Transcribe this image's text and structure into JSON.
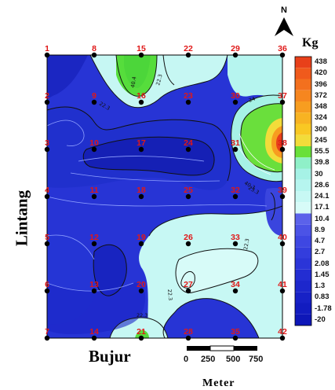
{
  "header_text": "",
  "labels": {
    "y_axis": "Lintang",
    "x_axis": "Bujur",
    "unit": "Kg",
    "scale_unit": "Meter",
    "north": "N"
  },
  "scale_bar": {
    "ticks": [
      "0",
      "250",
      "500",
      "750"
    ]
  },
  "legend": {
    "values": [
      "438",
      "420",
      "396",
      "372",
      "348",
      "324",
      "300",
      "245",
      "55.5",
      "39.8",
      "30",
      "28.6",
      "24.1",
      "17.1",
      "10.4",
      "8.9",
      "4.7",
      "2.7",
      "2.08",
      "1.45",
      "1.3",
      "0.83",
      "-1.78",
      "-20"
    ],
    "colors": [
      "#e8401a",
      "#f05a1c",
      "#f3701e",
      "#f6861f",
      "#f79d20",
      "#f8b322",
      "#f9c823",
      "#f2dc3a",
      "#69e03a",
      "#8ff0c8",
      "#a6f2e6",
      "#b6f5ef",
      "#c7f8f4",
      "#d7fbf8",
      "#5b62ea",
      "#4b53e6",
      "#3e47e2",
      "#333ddd",
      "#2b35d8",
      "#232dd2",
      "#1d27cc",
      "#1721c6",
      "#121cc0",
      "#0e17b8"
    ]
  },
  "contour_labels": [
    "40.4",
    "22.3",
    "22.3",
    "24",
    "40.3",
    "23.3",
    "22.3",
    "22.3",
    "22.3"
  ],
  "stations": [
    "1",
    "8",
    "15",
    "22",
    "29",
    "36",
    "2",
    "9",
    "16",
    "23",
    "30",
    "37",
    "3",
    "10",
    "17",
    "24",
    "31",
    "38",
    "4",
    "11",
    "18",
    "25",
    "32",
    "39",
    "5",
    "12",
    "19",
    "26",
    "33",
    "40",
    "6",
    "13",
    "20",
    "27",
    "34",
    "41",
    "7",
    "14",
    "21",
    "28",
    "35",
    "42"
  ]
}
